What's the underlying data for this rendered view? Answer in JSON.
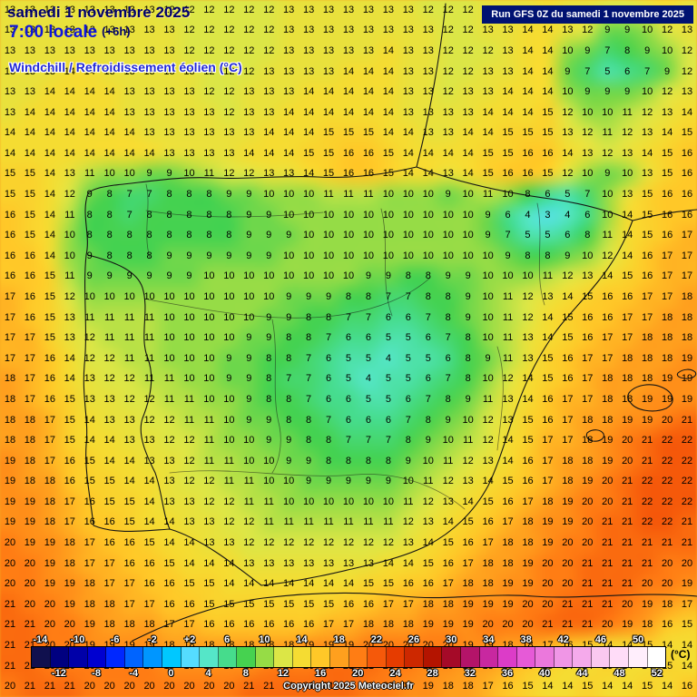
{
  "header": {
    "date_line": "samedi 1 novembre 2025",
    "time_line": "7:00 locale",
    "time_offset": "(+6h)",
    "variable_label": "Windchill / Refroidissement éolien (°C)",
    "run_info": "Run GFS 0Z du samedi 1 novembre 2025"
  },
  "footer": {
    "copyright": "Copyright 2025 Meteociel.fr"
  },
  "colors": {
    "map_text": "#000000",
    "header_navy": "#00006e",
    "header_blue": "#1016dc",
    "variable_blue": "#2228d8",
    "run_box_bg": "#001272",
    "run_box_text": "#ffffff"
  },
  "legend": {
    "unit_label": "(°C)",
    "top_values": [
      "-14",
      "-10",
      "-6",
      "-2",
      "+2",
      "6",
      "10",
      "14",
      "18",
      "22",
      "26",
      "30",
      "34",
      "38",
      "42",
      "46",
      "50"
    ],
    "bottom_values": [
      "-12",
      "-8",
      "-4",
      "0",
      "4",
      "8",
      "12",
      "16",
      "20",
      "24",
      "28",
      "32",
      "36",
      "40",
      "44",
      "48",
      "52"
    ],
    "colors": [
      "#10104e",
      "#000080",
      "#0000a8",
      "#0000d0",
      "#0028ff",
      "#0064ff",
      "#0096ff",
      "#00c8ff",
      "#55dcff",
      "#55e6c8",
      "#46dc8c",
      "#46d250",
      "#96dc46",
      "#dce646",
      "#f5dc32",
      "#ffc828",
      "#ffa01e",
      "#ff7d14",
      "#f5590a",
      "#e63c00",
      "#cd2800",
      "#b41400",
      "#a50a28",
      "#b41469",
      "#c828a0",
      "#dc3cc8",
      "#e65ad7",
      "#eb78dc",
      "#f096e6",
      "#f5aaeb",
      "#fac8f0",
      "#ffdcf8",
      "#ffeefc",
      "#ffffff"
    ]
  },
  "chart_data": {
    "type": "heatmap",
    "title": "Windchill / Refroidissement éolien (°C)",
    "unit": "°C",
    "value_min": -14,
    "value_max": 52,
    "step": 2,
    "grid_cols": 35,
    "grid_rows": 34,
    "values": [
      "13 13 13 13 13 13 13 13 12 12 12 12 12 12 13 13 13 13 13 13 13 12 12 12 13 13 13 14 13 13 12 12 13 14 13",
      "13 13 13 13 13 13 13 13 13 12 12 12 12 12 13 13 13 13 13 13 13 13 12 12 13 13 14 14 13 12 9 9 10 12 13",
      "13 13 13 13 13 13 13 13 13 12 12 12 12 12 13 13 13 13 13 14 13 13 12 12 12 13 14 14 10 9 7 8 9 10 12",
      "13 13 13 14 14 13 13 13 13 13 12 12 12 13 13 13 13 14 14 14 13 13 12 12 13 13 14 14 9 7 5 6 7 9 12",
      "13 13 14 14 14 14 13 13 13 13 12 12 13 13 13 14 14 14 14 14 13 13 12 13 13 14 14 14 10 9 9 9 10 12 13",
      "13 14 14 14 14 14 13 13 13 13 13 12 13 13 14 14 14 14 14 14 13 13 13 13 14 14 14 15 12 10 10 11 12 13 14",
      "14 14 14 14 14 14 14 13 13 13 13 13 13 14 14 14 15 15 15 14 14 13 13 14 14 15 15 15 13 12 11 12 13 14 15",
      "14 14 14 14 14 14 14 14 13 13 13 13 14 14 14 15 15 16 16 15 14 14 14 14 15 15 16 16 14 13 12 13 14 15 16",
      "15 15 14 13 11 10 10 9 9 10 11 12 12 13 13 14 15 16 16 15 14 14 13 14 15 16 16 15 12 10 9 10 13 15 16",
      "15 15 14 12 9 8 7 7 8 8 8 9 9 10 10 10 11 11 11 10 10 10 9 10 11 10 8 6 5 7 10 13 15 16 16",
      "16 15 14 11 8 8 7 8 8 8 8 8 9 9 10 10 10 10 10 10 10 10 10 10 9 6 4 3 4 6 10 14 15 16 16",
      "16 15 14 10 8 8 8 8 8 8 8 8 9 9 9 10 10 10 10 10 10 10 10 10 9 7 5 5 6 8 11 14 15 16 17",
      "16 16 14 10 9 8 8 8 9 9 9 9 9 9 10 10 10 10 10 10 10 10 10 10 10 9 8 8 9 10 12 14 16 17 17",
      "16 16 15 11 9 9 9 9 9 9 10 10 10 10 10 10 10 10 9 9 8 8 9 9 10 10 10 11 12 13 14 15 16 17 17",
      "17 16 15 12 10 10 10 10 10 10 10 10 10 10 9 9 9 8 8 7 7 8 8 9 10 11 12 13 14 15 16 16 17 17 18",
      "17 16 15 13 11 11 11 11 10 10 10 10 10 9 9 8 8 7 7 6 6 7 8 9 10 11 12 14 15 16 16 17 17 18 18",
      "17 17 15 13 12 11 11 11 10 10 10 10 9 9 8 8 7 6 6 5 5 6 7 8 10 11 13 14 15 16 17 17 18 18 18",
      "17 17 16 14 12 12 11 11 10 10 10 9 9 8 8 7 6 5 5 4 5 5 6 8 9 11 13 15 16 17 17 18 18 18 19",
      "18 17 16 14 13 12 12 11 11 10 10 9 9 8 7 7 6 5 4 5 5 6 7 8 10 12 14 15 16 17 18 18 18 19 19",
      "18 17 16 15 13 13 12 12 11 11 10 10 9 8 8 7 6 6 5 5 6 7 8 9 11 13 14 16 17 17 18 18 19 19 19",
      "18 18 17 15 14 13 13 12 12 11 11 10 9 9 8 8 7 6 6 6 7 8 9 10 12 13 15 16 17 18 18 19 19 20 21",
      "18 18 17 15 14 14 13 13 12 12 11 10 10 9 9 8 8 7 7 7 8 9 10 11 12 14 15 17 17 18 19 20 21 22 22",
      "19 18 17 16 15 14 14 13 13 12 11 11 10 10 9 9 8 8 8 8 9 10 11 12 13 14 16 17 18 18 19 20 21 22 22",
      "19 18 18 16 15 15 14 14 13 12 12 11 11 10 10 9 9 9 9 9 10 11 12 13 14 15 16 17 18 19 20 21 22 22 22",
      "19 19 18 17 16 15 15 14 13 13 12 12 11 11 10 10 10 10 10 10 11 12 13 14 15 16 17 18 19 20 20 21 22 22 22",
      "19 19 18 17 16 16 15 14 14 13 13 12 12 11 11 11 11 11 11 11 12 13 14 15 16 17 18 19 19 20 21 21 22 22 21",
      "20 19 19 18 17 16 16 15 14 14 13 13 12 12 12 12 12 12 12 12 13 14 15 16 17 18 18 19 20 20 21 21 21 21 21",
      "20 20 19 18 17 17 16 16 15 14 14 14 13 13 13 13 13 13 13 14 14 15 16 17 18 18 19 20 20 21 21 21 21 20 20",
      "20 20 19 19 18 17 17 16 16 15 15 14 14 14 14 14 14 14 15 15 16 16 17 18 18 19 19 20 20 21 21 21 20 20 19",
      "21 20 20 19 18 18 17 17 16 16 15 15 15 15 15 15 15 16 16 17 17 18 18 19 19 19 20 20 21 21 21 20 19 18 17",
      "21 21 20 20 19 18 18 18 17 17 16 16 16 16 16 16 17 17 18 18 18 19 19 19 20 20 20 21 21 21 20 19 18 16 15",
      "21 21 20 20 19 19 19 19 18 18 18 18 18 18 18 19 19 19 20 20 20 20 20 19 19 18 18 17 16 15 14 14 15 14 14",
      "21 21 20 20 20 20 20 20 19 19 19 19 19 20 20 20 21 21 21 20 20 19 19 18 18 17 16 15 14 14 15 14 14 15 14",
      "20 21 21 21 20 20 20 20 20 20 20 20 21 21 21 21 21 21 20 20 19 19 18 18 17 16 15 14 14 15 14 14 15 14 16"
    ]
  }
}
